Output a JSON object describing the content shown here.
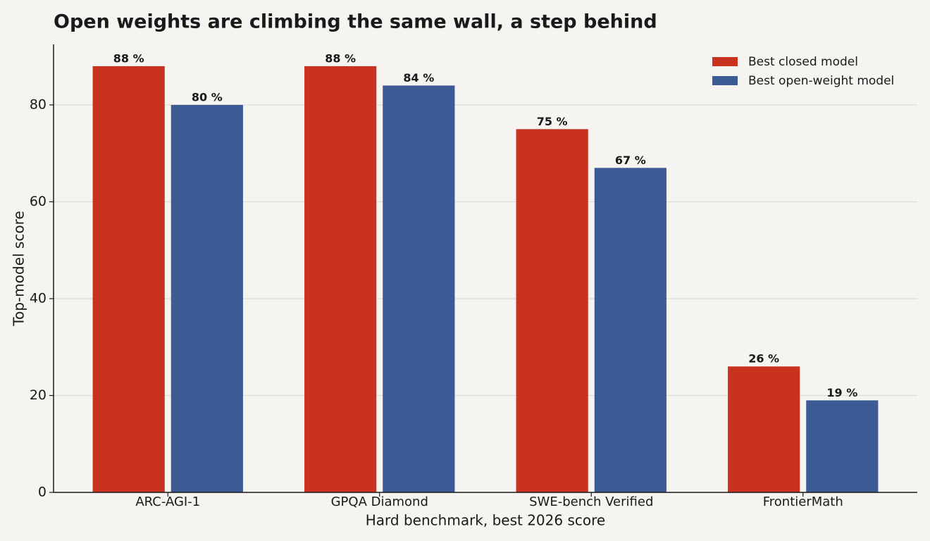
{
  "chart_data": {
    "type": "bar",
    "title": "Open weights are climbing the same wall, a step behind",
    "x_label": "Hard benchmark, best 2026 score",
    "y_label": "Top-model score",
    "categories": [
      "ARC-AGI-1",
      "GPQA Diamond",
      "SWE-bench Verified",
      "FrontierMath"
    ],
    "series": [
      {
        "name": "Best closed model",
        "color": "#c9321f",
        "values": [
          88,
          88,
          75,
          26
        ],
        "value_labels": [
          "88 %",
          "88 %",
          "75 %",
          "26 %"
        ]
      },
      {
        "name": "Best open-weight model",
        "color": "#3c5a94",
        "values": [
          80,
          84,
          67,
          19
        ],
        "value_labels": [
          "80 %",
          "84 %",
          "67 %",
          "19 %"
        ]
      }
    ],
    "ylim": [
      0,
      92.5
    ],
    "yticks": [
      0,
      20,
      40,
      60,
      80
    ],
    "grid": true,
    "legend": "upper right"
  }
}
